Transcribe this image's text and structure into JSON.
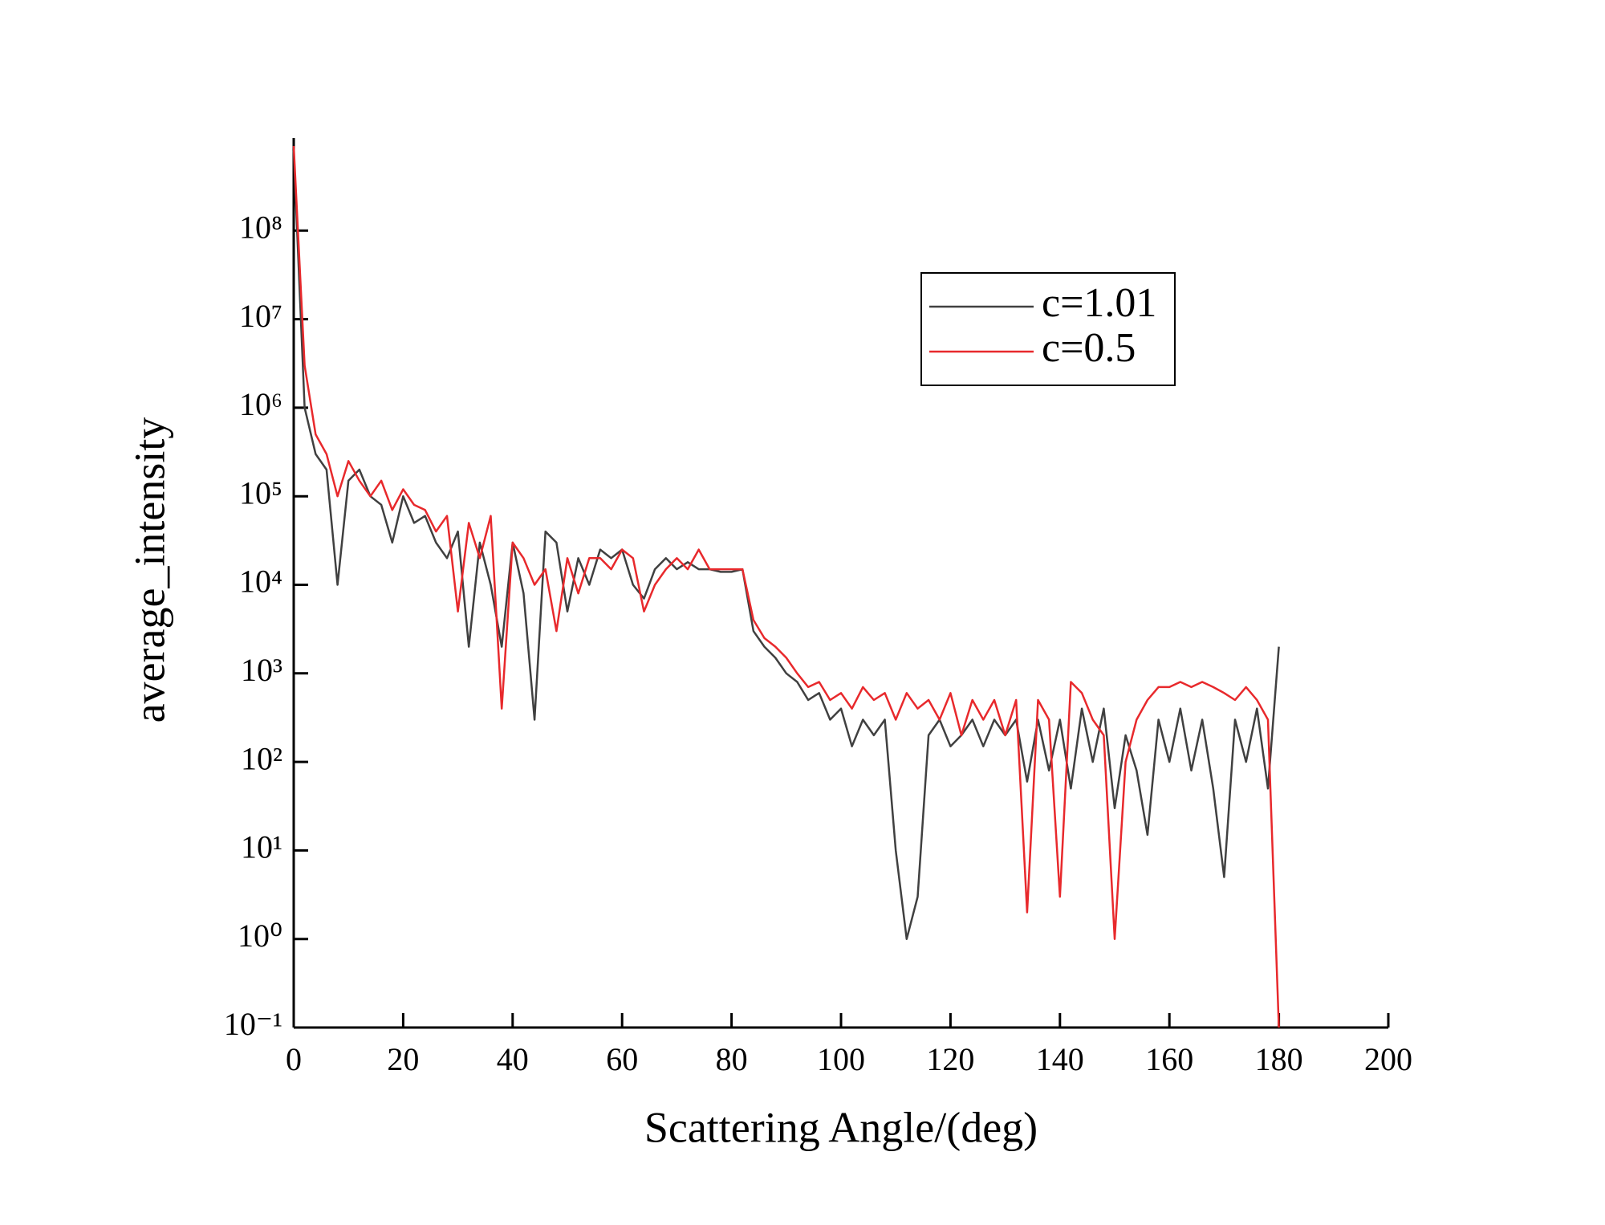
{
  "chart_data": {
    "type": "line",
    "x_label": "Scattering Angle/(deg)",
    "y_label": "average_intensity",
    "x": [
      0,
      2,
      4,
      6,
      8,
      10,
      12,
      14,
      16,
      18,
      20,
      22,
      24,
      26,
      28,
      30,
      32,
      34,
      36,
      38,
      40,
      42,
      44,
      46,
      48,
      50,
      52,
      54,
      56,
      58,
      60,
      62,
      64,
      66,
      68,
      70,
      72,
      74,
      76,
      78,
      80,
      82,
      84,
      86,
      88,
      90,
      92,
      94,
      96,
      98,
      100,
      102,
      104,
      106,
      108,
      110,
      112,
      114,
      116,
      118,
      120,
      122,
      124,
      126,
      128,
      130,
      132,
      134,
      136,
      138,
      140,
      142,
      144,
      146,
      148,
      150,
      152,
      154,
      156,
      158,
      160,
      162,
      164,
      166,
      168,
      170,
      172,
      174,
      176,
      178,
      180
    ],
    "series": [
      {
        "name": "c=1.01",
        "color": "#404040",
        "values": [
          800000000,
          1000000,
          300000,
          200000,
          10000,
          150000,
          200000,
          100000,
          80000,
          30000,
          100000,
          50000,
          60000,
          30000,
          20000,
          40000,
          2000,
          30000,
          10000,
          2000,
          30000,
          8000,
          300,
          40000,
          30000,
          5000,
          20000,
          10000,
          25000,
          20000,
          25000,
          10000,
          7000,
          15000,
          20000,
          15000,
          18000,
          15000,
          15000,
          14000,
          14000,
          15000,
          3000,
          2000,
          1500,
          1000,
          800,
          500,
          600,
          300,
          400,
          150,
          300,
          200,
          300,
          10,
          1,
          3,
          200,
          300,
          150,
          200,
          300,
          150,
          300,
          200,
          300,
          60,
          300,
          80,
          300,
          50,
          400,
          100,
          400,
          30,
          200,
          80,
          15,
          300,
          100,
          400,
          80,
          300,
          50,
          5,
          300,
          100,
          400,
          50,
          2000
        ]
      },
      {
        "name": "c=0.5",
        "color": "#e8292c",
        "values": [
          900000000,
          3000000,
          500000,
          300000,
          100000,
          250000,
          150000,
          100000,
          150000,
          70000,
          120000,
          80000,
          70000,
          40000,
          60000,
          5000,
          50000,
          20000,
          60000,
          400,
          30000,
          20000,
          10000,
          15000,
          3000,
          20000,
          8000,
          20000,
          20000,
          15000,
          25000,
          20000,
          5000,
          10000,
          15000,
          20000,
          15000,
          25000,
          15000,
          15000,
          15000,
          15000,
          4000,
          2500,
          2000,
          1500,
          1000,
          700,
          800,
          500,
          600,
          400,
          700,
          500,
          600,
          300,
          600,
          400,
          500,
          300,
          600,
          200,
          500,
          300,
          500,
          200,
          500,
          2,
          500,
          300,
          3,
          800,
          600,
          300,
          200,
          1,
          100,
          300,
          500,
          700,
          700,
          800,
          700,
          800,
          700,
          600,
          500,
          700,
          500,
          300,
          0.1
        ]
      }
    ],
    "xlim": [
      0,
      200
    ],
    "xticks": [
      0,
      20,
      40,
      60,
      80,
      100,
      120,
      140,
      160,
      180,
      200
    ],
    "ylim": [
      0.1,
      1000000000
    ],
    "yscale": "log",
    "yticks": [
      {
        "value": 0.1,
        "label": "10⁻¹"
      },
      {
        "value": 1,
        "label": "10⁰"
      },
      {
        "value": 10,
        "label": "10¹"
      },
      {
        "value": 100,
        "label": "10²"
      },
      {
        "value": 1000,
        "label": "10³"
      },
      {
        "value": 10000,
        "label": "10⁴"
      },
      {
        "value": 100000,
        "label": "10⁵"
      },
      {
        "value": 1000000,
        "label": "10⁶"
      },
      {
        "value": 10000000,
        "label": "10⁷"
      },
      {
        "value": 100000000,
        "label": "10⁸"
      }
    ],
    "legend_loc": "upper right",
    "grid": false
  }
}
